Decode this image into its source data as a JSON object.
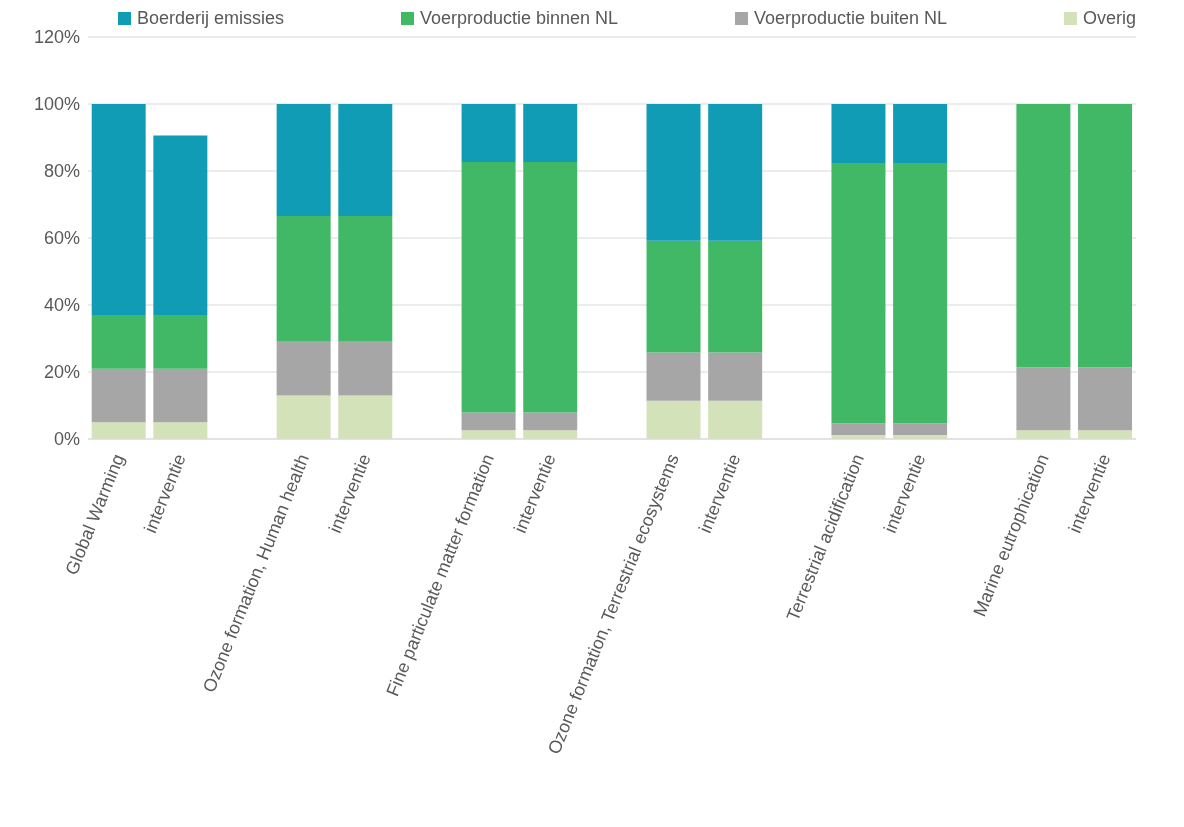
{
  "chart_data": {
    "type": "bar",
    "stacked": true,
    "categories": [
      "Global Warming",
      "interventie",
      null,
      "Ozone formation, Human health",
      "interventie",
      null,
      "Fine particulate matter formation",
      "interventie",
      null,
      "Ozone formation, Terrestrial ecosystems",
      "interventie",
      null,
      "Terrestrial acidification",
      "interventie",
      null,
      "Marine eutrophication",
      "interventie"
    ],
    "series": [
      {
        "name": "Overig",
        "color": "#d3e2b8",
        "values": [
          5,
          5,
          null,
          13,
          13,
          null,
          2.6,
          2.6,
          null,
          11.4,
          11.4,
          null,
          1.2,
          1.2,
          null,
          2.6,
          2.6
        ]
      },
      {
        "name": "Voerproductie buiten NL",
        "color": "#a6a6a6",
        "values": [
          16,
          16,
          null,
          16,
          16,
          null,
          5.3,
          5.3,
          null,
          14.4,
          14.4,
          null,
          3.5,
          3.5,
          null,
          18.8,
          18.8
        ]
      },
      {
        "name": "Voerproductie binnen NL",
        "color": "#41b866",
        "values": [
          16,
          16,
          null,
          37.6,
          37.6,
          null,
          74.8,
          74.8,
          null,
          33.4,
          33.4,
          null,
          77.7,
          77.7,
          null,
          78.6,
          78.6
        ]
      },
      {
        "name": "Boerderij emissies",
        "color": "#119cb5",
        "values": [
          63,
          53.6,
          null,
          33.4,
          33.4,
          null,
          17.3,
          17.3,
          null,
          40.8,
          40.8,
          null,
          17.6,
          17.6,
          null,
          0,
          0
        ]
      }
    ],
    "ylim": [
      0,
      120
    ],
    "yticks": [
      {
        "value": 0,
        "label": "0%"
      },
      {
        "value": 20,
        "label": "20%"
      },
      {
        "value": 40,
        "label": "40%"
      },
      {
        "value": 60,
        "label": "60%"
      },
      {
        "value": 80,
        "label": "80%"
      },
      {
        "value": 100,
        "label": "100%"
      },
      {
        "value": 120,
        "label": "120%"
      }
    ],
    "grid": "y",
    "legend": "top"
  }
}
